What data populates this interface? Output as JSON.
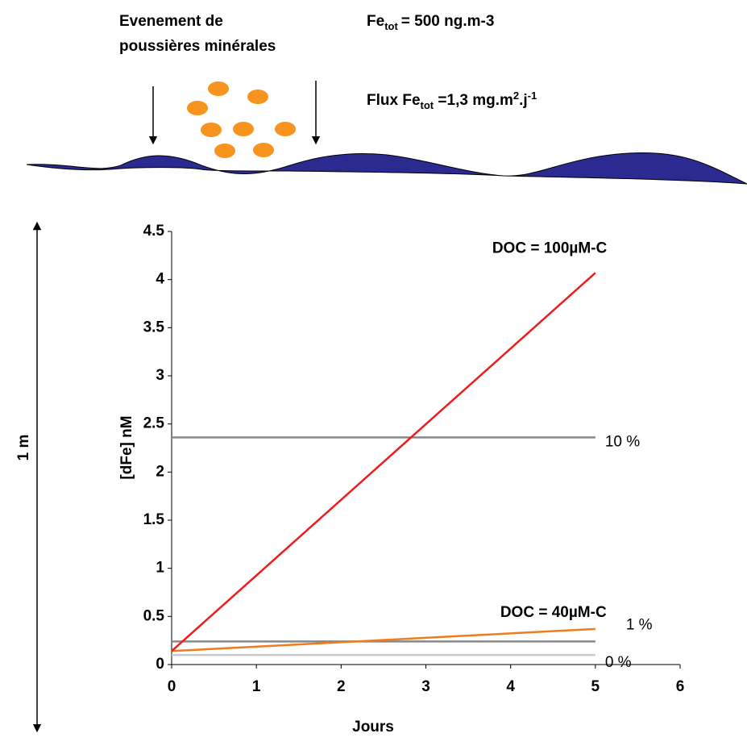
{
  "chart_data": {
    "type": "line",
    "annotations": {
      "event": [
        "Evenement de",
        "poussières minérales"
      ],
      "concentration": {
        "main": "Fe",
        "sub": "tot",
        "rest": "= 500 ng.m-3"
      },
      "flux": {
        "main": "Flux Fe",
        "sub": "tot",
        "rest": " =1,3 mg.m",
        "sup1": "2",
        "mid": ".j",
        "sup2": "-1"
      },
      "depth": "1 m"
    },
    "x_label": "Jours",
    "y_label": "[dFe] nM",
    "xlim": [
      0,
      6
    ],
    "xticks": [
      0,
      1,
      2,
      3,
      4,
      5,
      6
    ],
    "ylim": [
      0,
      4.5
    ],
    "yticks": [
      0,
      0.5,
      1,
      1.5,
      2,
      2.5,
      3,
      3.5,
      4,
      4.5
    ],
    "series": [
      {
        "name": "DOC = 100µM-C",
        "color": "#ee1c1c",
        "x": [
          0,
          5
        ],
        "values": [
          0.14,
          4.07
        ]
      },
      {
        "name": "DOC = 40µM-C",
        "color": "#f07c1c",
        "x": [
          0,
          5
        ],
        "values": [
          0.14,
          0.37
        ]
      },
      {
        "name": "10 %",
        "color": "#888888",
        "x": [
          0,
          5
        ],
        "values": [
          2.36,
          2.36
        ]
      },
      {
        "name": "1 %",
        "color": "#888888",
        "x": [
          0,
          5
        ],
        "values": [
          0.24,
          0.24
        ]
      },
      {
        "name": "0 %",
        "color": "#c8c8c8",
        "x": [
          0,
          5
        ],
        "values": [
          0.1,
          0.1
        ]
      }
    ]
  }
}
